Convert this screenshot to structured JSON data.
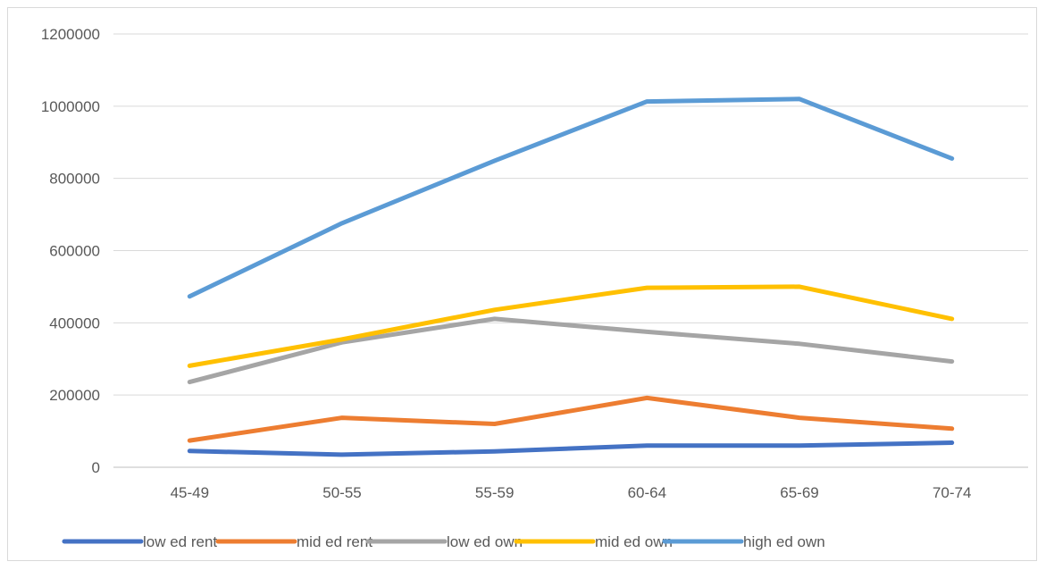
{
  "chart_data": {
    "type": "line",
    "categories": [
      "45-49",
      "50-55",
      "55-59",
      "60-64",
      "65-69",
      "70-74"
    ],
    "ylim": [
      0,
      1200000
    ],
    "yticks": [
      "0",
      "200000",
      "400000",
      "600000",
      "800000",
      "1000000",
      "1200000"
    ],
    "grid": true,
    "legend_position": "bottom",
    "series": [
      {
        "name": "low ed rent",
        "color": "#4472c4",
        "values": [
          45000,
          35000,
          44000,
          60000,
          60000,
          68000
        ]
      },
      {
        "name": "mid ed rent",
        "color": "#ed7d31",
        "values": [
          74000,
          137000,
          120000,
          192000,
          137000,
          107000
        ]
      },
      {
        "name": "low ed own",
        "color": "#a5a5a5",
        "values": [
          236000,
          346000,
          411000,
          375000,
          342000,
          293000
        ]
      },
      {
        "name": "mid ed own",
        "color": "#ffc000",
        "values": [
          281000,
          354000,
          436000,
          497000,
          500000,
          411000
        ]
      },
      {
        "name": "high ed own",
        "color": "#5b9bd5",
        "values": [
          473000,
          676000,
          849000,
          1013000,
          1020000,
          855000
        ]
      }
    ]
  }
}
